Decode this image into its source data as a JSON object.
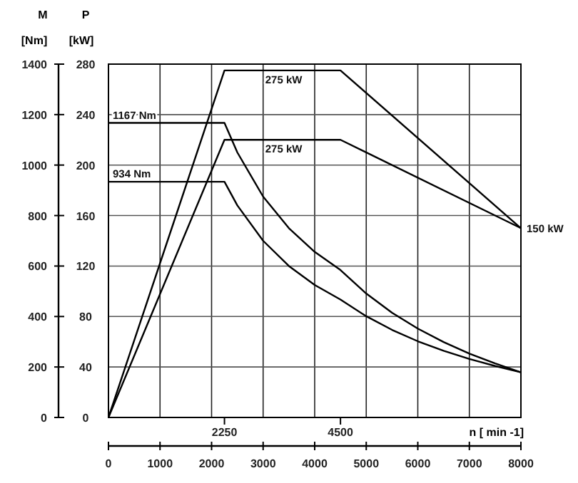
{
  "chart_data": {
    "type": "line",
    "xlim": [
      0,
      8000
    ],
    "xticks": [
      0,
      1000,
      2000,
      3000,
      4000,
      5000,
      6000,
      7000,
      8000
    ],
    "x2lim": [
      0,
      8000
    ],
    "x2ticks": [
      2250,
      4500
    ],
    "x2label": "n [ min -1]",
    "ylabel": "M [Nm]",
    "ylim": [
      0,
      1400
    ],
    "yticks": [
      0,
      200,
      400,
      600,
      800,
      1000,
      1200,
      1400
    ],
    "y2label": "P [kW]",
    "y2lim": [
      0,
      280
    ],
    "y2ticks": [
      0,
      40,
      80,
      120,
      160,
      200,
      240,
      280
    ],
    "grid": true,
    "marker": "none",
    "line_style": "solid",
    "series": [
      {
        "color": "#000000",
        "x": [
          0,
          2250,
          2500,
          3000,
          3500,
          4000,
          4500,
          5000,
          5500,
          6000,
          6500,
          7000,
          7500,
          8000
        ],
        "values": [
          1167,
          1167,
          1050,
          875,
          750,
          656,
          584,
          491,
          415,
          352,
          299,
          253,
          214,
          179
        ]
      },
      {
        "color": "#000000",
        "x": [
          0,
          2250,
          2500,
          3000,
          3500,
          4000,
          4500,
          5000,
          5500,
          6000,
          6500,
          7000,
          7500,
          8000
        ],
        "values": [
          934,
          934,
          840,
          700,
          600,
          525,
          467,
          401,
          347,
          302,
          264,
          232,
          204,
          179
        ]
      },
      {
        "color": "#000000",
        "axis": "y2",
        "x": [
          0,
          2250,
          4500,
          8000
        ],
        "values": [
          0,
          275,
          275,
          150
        ]
      },
      {
        "color": "#000000",
        "axis": "y2",
        "x": [
          0,
          2250,
          4500,
          8000
        ],
        "values": [
          0,
          220,
          220,
          150
        ]
      }
    ],
    "annotations": [
      {
        "text": "1167 Nm",
        "x": 0,
        "y": 1167
      },
      {
        "text": "934 Nm",
        "x": 0,
        "y": 934
      },
      {
        "text": "275 kW",
        "x": 3400,
        "y": 1375
      },
      {
        "text": "275 kW",
        "x": 3400,
        "y": 1100
      },
      {
        "text": "150 kW",
        "x": 8000,
        "y": 750
      }
    ]
  }
}
